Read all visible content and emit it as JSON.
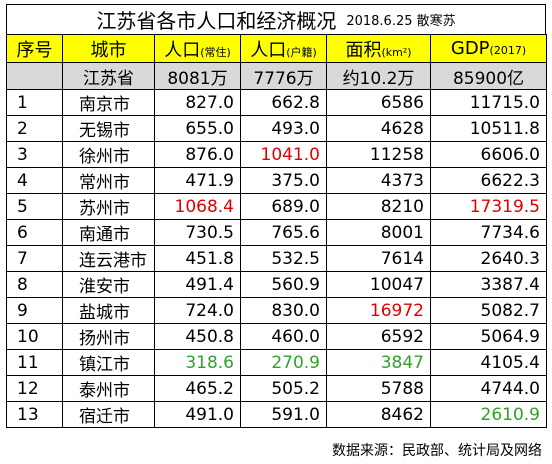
{
  "title": "江苏省各市人口和经济概况",
  "subtitle": "2018.6.25 散寒苏",
  "headers": {
    "index": "序号",
    "city": "城市",
    "pop_resident": "人口",
    "pop_resident_unit": "(常住)",
    "pop_registered": "人口",
    "pop_registered_unit": "(户籍)",
    "area": "面积",
    "area_unit": "(km²)",
    "gdp": "GDP",
    "gdp_unit": "(2017)"
  },
  "total": {
    "index": "",
    "city": "江苏省",
    "pop_resident": "8081万",
    "pop_registered": "7776万",
    "area": "约10.2万",
    "gdp": "85900亿"
  },
  "rows": [
    {
      "index": "1",
      "city": "南京市",
      "pop_resident": "827.0",
      "pop_registered": "662.8",
      "area": "6586",
      "gdp": "11715.0"
    },
    {
      "index": "2",
      "city": "无锡市",
      "pop_resident": "655.0",
      "pop_registered": "493.0",
      "area": "4628",
      "gdp": "10511.8"
    },
    {
      "index": "3",
      "city": "徐州市",
      "pop_resident": "876.0",
      "pop_registered": "1041.0",
      "area": "11258",
      "gdp": "6606.0"
    },
    {
      "index": "4",
      "city": "常州市",
      "pop_resident": "471.9",
      "pop_registered": "375.0",
      "area": "4373",
      "gdp": "6622.3"
    },
    {
      "index": "5",
      "city": "苏州市",
      "pop_resident": "1068.4",
      "pop_registered": "689.0",
      "area": "8210",
      "gdp": "17319.5"
    },
    {
      "index": "6",
      "city": "南通市",
      "pop_resident": "730.5",
      "pop_registered": "765.6",
      "area": "8001",
      "gdp": "7734.6"
    },
    {
      "index": "7",
      "city": "连云港市",
      "pop_resident": "451.8",
      "pop_registered": "532.5",
      "area": "7614",
      "gdp": "2640.3"
    },
    {
      "index": "8",
      "city": "淮安市",
      "pop_resident": "491.4",
      "pop_registered": "560.9",
      "area": "10047",
      "gdp": "3387.4"
    },
    {
      "index": "9",
      "city": "盐城市",
      "pop_resident": "724.0",
      "pop_registered": "830.0",
      "area": "16972",
      "gdp": "5082.7"
    },
    {
      "index": "10",
      "city": "扬州市",
      "pop_resident": "450.8",
      "pop_registered": "460.0",
      "area": "6592",
      "gdp": "5064.9"
    },
    {
      "index": "11",
      "city": "镇江市",
      "pop_resident": "318.6",
      "pop_registered": "270.9",
      "area": "3847",
      "gdp": "4105.4"
    },
    {
      "index": "12",
      "city": "泰州市",
      "pop_resident": "465.2",
      "pop_registered": "505.2",
      "area": "5788",
      "gdp": "4744.0"
    },
    {
      "index": "13",
      "city": "宿迁市",
      "pop_resident": "491.0",
      "pop_registered": "591.0",
      "area": "8462",
      "gdp": "2610.9"
    }
  ],
  "highlights": {
    "max_color": "#e00000",
    "min_color": "#33a02c",
    "max": [
      [
        "3",
        "pop_registered"
      ],
      [
        "5",
        "pop_resident"
      ],
      [
        "5",
        "gdp"
      ],
      [
        "9",
        "area"
      ]
    ],
    "min": [
      [
        "11",
        "pop_resident"
      ],
      [
        "11",
        "pop_registered"
      ],
      [
        "11",
        "area"
      ],
      [
        "13",
        "gdp"
      ]
    ]
  },
  "source": "数据来源：民政部、统计局及网络"
}
